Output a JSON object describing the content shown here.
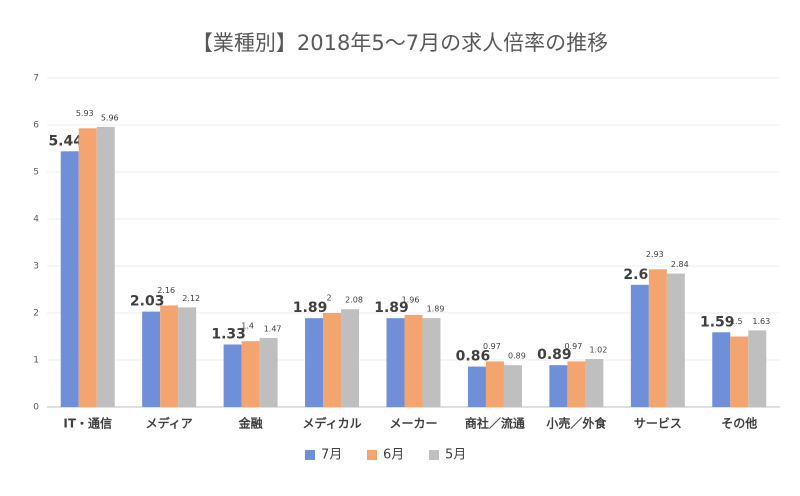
{
  "chart_data": {
    "type": "bar",
    "title": "【業種別】2018年5〜7月の求人倍率の推移",
    "categories": [
      "IT・通信",
      "メディア",
      "金融",
      "メディカル",
      "メーカー",
      "商社／流通",
      "小売／外食",
      "サービス",
      "その他"
    ],
    "series": [
      {
        "name": "7月",
        "color": "#6f8fd8",
        "values": [
          5.44,
          2.03,
          1.33,
          1.89,
          1.89,
          0.86,
          0.89,
          2.6,
          1.59
        ]
      },
      {
        "name": "6月",
        "color": "#f4a46f",
        "values": [
          5.93,
          2.16,
          1.4,
          2,
          1.96,
          0.97,
          0.97,
          2.93,
          1.5
        ]
      },
      {
        "name": "5月",
        "color": "#bfbfbf",
        "values": [
          5.96,
          2.12,
          1.47,
          2.08,
          1.89,
          0.89,
          1.02,
          2.84,
          1.63
        ]
      }
    ],
    "ylim": [
      0,
      7
    ],
    "yticks": [
      0,
      1,
      2,
      3,
      4,
      5,
      6,
      7
    ],
    "grid": true
  }
}
